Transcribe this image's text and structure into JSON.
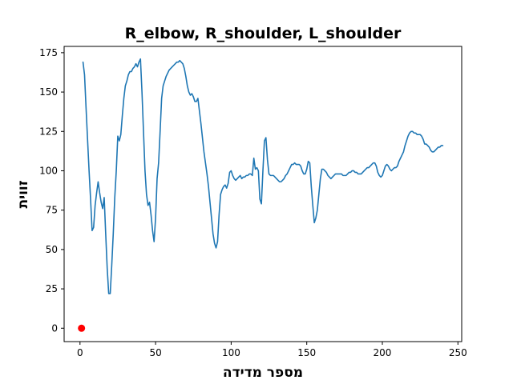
{
  "chart_data": {
    "type": "line",
    "title": "R_elbow, R_shoulder, L_shoulder",
    "xlabel": "מספר מדידה",
    "ylabel": "זווית",
    "xlim": [
      -10.5,
      252.5
    ],
    "ylim": [
      -8.5,
      179
    ],
    "x_ticks": [
      0,
      50,
      100,
      150,
      200,
      250
    ],
    "y_ticks": [
      0,
      25,
      50,
      75,
      100,
      125,
      150,
      175
    ],
    "grid": false,
    "colors": {
      "line": "#1f77b4",
      "marker": "#ff0000"
    },
    "series": [
      {
        "points": [
          [
            2,
            169
          ],
          [
            3,
            161
          ],
          [
            4,
            140
          ],
          [
            5,
            120
          ],
          [
            6,
            100
          ],
          [
            7,
            82
          ],
          [
            8,
            62
          ],
          [
            9,
            64
          ],
          [
            10,
            78
          ],
          [
            11,
            86
          ],
          [
            12,
            93
          ],
          [
            13,
            86
          ],
          [
            14,
            80
          ],
          [
            15,
            76
          ],
          [
            16,
            83
          ],
          [
            17,
            60
          ],
          [
            18,
            38
          ],
          [
            19,
            22
          ],
          [
            20,
            22
          ],
          [
            21,
            40
          ],
          [
            22,
            60
          ],
          [
            23,
            83
          ],
          [
            24,
            100
          ],
          [
            25,
            122
          ],
          [
            26,
            119
          ],
          [
            27,
            123
          ],
          [
            28,
            135
          ],
          [
            29,
            146
          ],
          [
            30,
            154
          ],
          [
            31,
            157
          ],
          [
            32,
            161
          ],
          [
            33,
            163
          ],
          [
            34,
            163
          ],
          [
            35,
            165
          ],
          [
            36,
            166
          ],
          [
            37,
            168
          ],
          [
            38,
            166
          ],
          [
            39,
            169
          ],
          [
            40,
            171
          ],
          [
            41,
            150
          ],
          [
            42,
            125
          ],
          [
            43,
            100
          ],
          [
            44,
            85
          ],
          [
            45,
            78
          ],
          [
            46,
            80
          ],
          [
            47,
            72
          ],
          [
            48,
            62
          ],
          [
            49,
            55
          ],
          [
            50,
            70
          ],
          [
            51,
            95
          ],
          [
            52,
            105
          ],
          [
            53,
            125
          ],
          [
            54,
            146
          ],
          [
            55,
            154
          ],
          [
            56,
            157
          ],
          [
            57,
            160
          ],
          [
            58,
            162
          ],
          [
            59,
            164
          ],
          [
            60,
            165
          ],
          [
            61,
            166
          ],
          [
            62,
            167
          ],
          [
            63,
            168
          ],
          [
            64,
            169
          ],
          [
            65,
            169
          ],
          [
            66,
            170
          ],
          [
            67,
            169
          ],
          [
            68,
            168
          ],
          [
            69,
            165
          ],
          [
            70,
            160
          ],
          [
            71,
            154
          ],
          [
            72,
            150
          ],
          [
            73,
            148
          ],
          [
            74,
            149
          ],
          [
            75,
            147
          ],
          [
            76,
            144
          ],
          [
            77,
            144
          ],
          [
            78,
            146
          ],
          [
            79,
            138
          ],
          [
            80,
            130
          ],
          [
            81,
            121
          ],
          [
            82,
            112
          ],
          [
            83,
            105
          ],
          [
            84,
            98
          ],
          [
            85,
            90
          ],
          [
            86,
            80
          ],
          [
            87,
            70
          ],
          [
            88,
            60
          ],
          [
            89,
            54
          ],
          [
            90,
            51
          ],
          [
            91,
            55
          ],
          [
            92,
            72
          ],
          [
            93,
            85
          ],
          [
            94,
            88
          ],
          [
            95,
            90
          ],
          [
            96,
            91
          ],
          [
            97,
            89
          ],
          [
            98,
            92
          ],
          [
            99,
            99
          ],
          [
            100,
            100
          ],
          [
            101,
            97
          ],
          [
            102,
            95
          ],
          [
            103,
            94
          ],
          [
            104,
            95
          ],
          [
            105,
            96
          ],
          [
            106,
            97
          ],
          [
            107,
            95
          ],
          [
            108,
            96
          ],
          [
            109,
            96
          ],
          [
            110,
            97
          ],
          [
            111,
            97
          ],
          [
            112,
            98
          ],
          [
            113,
            98
          ],
          [
            114,
            97
          ],
          [
            115,
            108
          ],
          [
            116,
            101
          ],
          [
            117,
            102
          ],
          [
            118,
            100
          ],
          [
            119,
            82
          ],
          [
            120,
            79
          ],
          [
            121,
            100
          ],
          [
            122,
            119
          ],
          [
            123,
            121
          ],
          [
            124,
            107
          ],
          [
            125,
            98
          ],
          [
            126,
            97
          ],
          [
            127,
            97
          ],
          [
            128,
            97
          ],
          [
            129,
            96
          ],
          [
            130,
            95
          ],
          [
            131,
            94
          ],
          [
            132,
            93
          ],
          [
            133,
            93
          ],
          [
            134,
            94
          ],
          [
            135,
            95
          ],
          [
            136,
            97
          ],
          [
            137,
            98
          ],
          [
            138,
            100
          ],
          [
            139,
            102
          ],
          [
            140,
            104
          ],
          [
            141,
            104
          ],
          [
            142,
            105
          ],
          [
            143,
            104
          ],
          [
            144,
            104
          ],
          [
            145,
            104
          ],
          [
            146,
            103
          ],
          [
            147,
            100
          ],
          [
            148,
            98
          ],
          [
            149,
            98
          ],
          [
            150,
            101
          ],
          [
            151,
            106
          ],
          [
            152,
            105
          ],
          [
            153,
            90
          ],
          [
            154,
            78
          ],
          [
            155,
            67
          ],
          [
            156,
            70
          ],
          [
            157,
            75
          ],
          [
            158,
            85
          ],
          [
            159,
            95
          ],
          [
            160,
            101
          ],
          [
            161,
            101
          ],
          [
            162,
            100
          ],
          [
            163,
            99
          ],
          [
            164,
            97
          ],
          [
            165,
            96
          ],
          [
            166,
            95
          ],
          [
            167,
            96
          ],
          [
            168,
            97
          ],
          [
            169,
            98
          ],
          [
            170,
            98
          ],
          [
            171,
            98
          ],
          [
            172,
            98
          ],
          [
            173,
            98
          ],
          [
            174,
            97
          ],
          [
            175,
            97
          ],
          [
            176,
            97
          ],
          [
            177,
            98
          ],
          [
            178,
            99
          ],
          [
            179,
            99
          ],
          [
            180,
            100
          ],
          [
            181,
            100
          ],
          [
            182,
            99
          ],
          [
            183,
            99
          ],
          [
            184,
            98
          ],
          [
            185,
            98
          ],
          [
            186,
            98
          ],
          [
            187,
            99
          ],
          [
            188,
            100
          ],
          [
            189,
            101
          ],
          [
            190,
            102
          ],
          [
            191,
            102
          ],
          [
            192,
            103
          ],
          [
            193,
            104
          ],
          [
            194,
            105
          ],
          [
            195,
            105
          ],
          [
            196,
            103
          ],
          [
            197,
            99
          ],
          [
            198,
            97
          ],
          [
            199,
            96
          ],
          [
            200,
            97
          ],
          [
            201,
            100
          ],
          [
            202,
            103
          ],
          [
            203,
            104
          ],
          [
            204,
            103
          ],
          [
            205,
            101
          ],
          [
            206,
            100
          ],
          [
            207,
            101
          ],
          [
            208,
            102
          ],
          [
            209,
            102
          ],
          [
            210,
            103
          ],
          [
            211,
            106
          ],
          [
            212,
            108
          ],
          [
            213,
            110
          ],
          [
            214,
            112
          ],
          [
            215,
            116
          ],
          [
            216,
            119
          ],
          [
            217,
            122
          ],
          [
            218,
            124
          ],
          [
            219,
            125
          ],
          [
            220,
            125
          ],
          [
            221,
            124
          ],
          [
            222,
            124
          ],
          [
            223,
            123
          ],
          [
            224,
            123
          ],
          [
            225,
            123
          ],
          [
            226,
            122
          ],
          [
            227,
            120
          ],
          [
            228,
            117
          ],
          [
            229,
            117
          ],
          [
            230,
            116
          ],
          [
            231,
            115
          ],
          [
            232,
            113
          ],
          [
            233,
            112
          ],
          [
            234,
            112
          ],
          [
            235,
            113
          ],
          [
            236,
            114
          ],
          [
            237,
            115
          ],
          [
            238,
            115
          ],
          [
            239,
            116
          ],
          [
            240,
            116
          ]
        ]
      }
    ],
    "markers": [
      {
        "x": 1,
        "y": 0
      }
    ]
  }
}
